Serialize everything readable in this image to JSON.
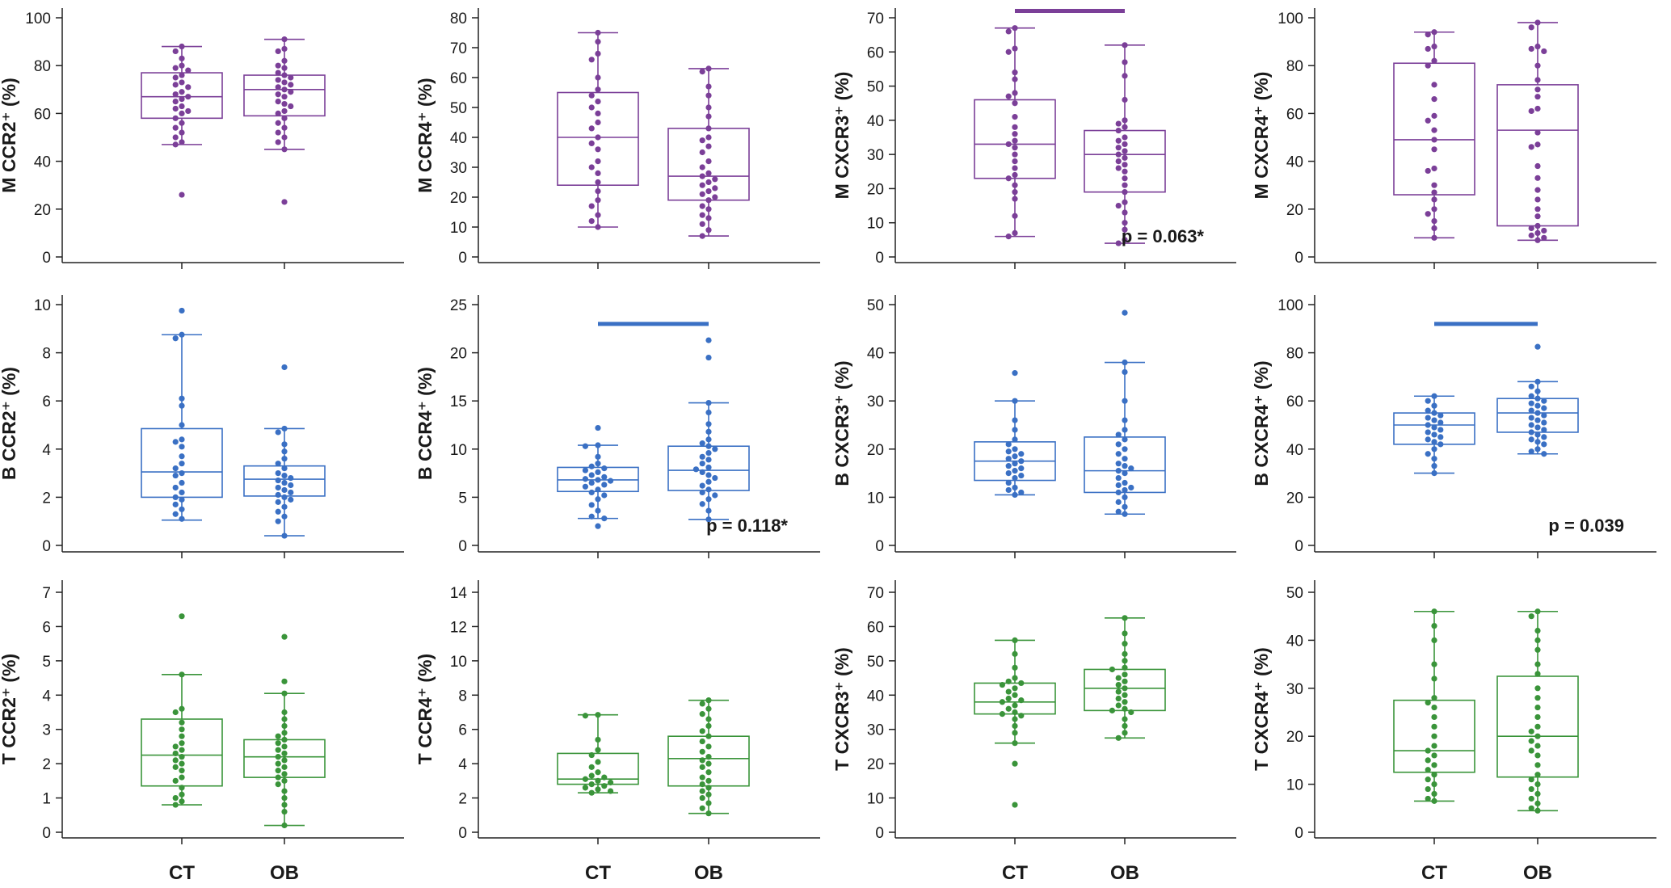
{
  "figure": {
    "group_labels": [
      "CT",
      "OB"
    ],
    "colors": {
      "M": "#7b3f98",
      "B": "#3a70c4",
      "T": "#3a943a"
    }
  },
  "chart_data": [
    {
      "id": "m-ccr2",
      "type": "box",
      "row": "M",
      "ylabel": "M CCR2⁺ (%)",
      "ylim": [
        0,
        100
      ],
      "yticks": [
        0,
        20,
        40,
        60,
        80,
        100
      ],
      "categories": [
        "CT",
        "OB"
      ],
      "boxes": [
        {
          "q1": 58,
          "median": 67,
          "q3": 77,
          "whisker_low": 47,
          "whisker_high": 88
        },
        {
          "q1": 59,
          "median": 70,
          "q3": 76,
          "whisker_low": 45,
          "whisker_high": 91
        }
      ],
      "points": [
        [
          88,
          86,
          83,
          80,
          79,
          78,
          76,
          75,
          73,
          72,
          71,
          69,
          68,
          67,
          66,
          65,
          63,
          62,
          61,
          60,
          58,
          56,
          54,
          52,
          50,
          48,
          47,
          26
        ],
        [
          91,
          87,
          86,
          82,
          80,
          79,
          77,
          76,
          75,
          74,
          73,
          72,
          71,
          70,
          69,
          68,
          67,
          65,
          64,
          63,
          61,
          60,
          58,
          56,
          54,
          52,
          50,
          48,
          45,
          23
        ]
      ],
      "significance": null,
      "p_value": null
    },
    {
      "id": "m-ccr4",
      "type": "box",
      "row": "M",
      "ylabel": "M CCR4⁺ (%)",
      "ylim": [
        0,
        80
      ],
      "yticks": [
        0,
        10,
        20,
        30,
        40,
        50,
        60,
        70,
        80
      ],
      "categories": [
        "CT",
        "OB"
      ],
      "boxes": [
        {
          "q1": 24,
          "median": 40,
          "q3": 55,
          "whisker_low": 10,
          "whisker_high": 75
        },
        {
          "q1": 19,
          "median": 27,
          "q3": 43,
          "whisker_low": 7,
          "whisker_high": 63
        }
      ],
      "points": [
        [
          75,
          72,
          68,
          66,
          60,
          56,
          54,
          52,
          50,
          48,
          45,
          43,
          40,
          38,
          36,
          32,
          30,
          28,
          25,
          22,
          19,
          17,
          14,
          12,
          10
        ],
        [
          63,
          62,
          57,
          54,
          50,
          47,
          43,
          40,
          39,
          37,
          35,
          32,
          30,
          28,
          27,
          26,
          25,
          24,
          23,
          22,
          21,
          20,
          19,
          17,
          16,
          14,
          13,
          11,
          9,
          7
        ]
      ],
      "significance": null,
      "p_value": null
    },
    {
      "id": "m-cxcr3",
      "type": "box",
      "row": "M",
      "ylabel": "M CXCR3⁺ (%)",
      "ylim": [
        0,
        70
      ],
      "yticks": [
        0,
        10,
        20,
        30,
        40,
        50,
        60,
        70
      ],
      "categories": [
        "CT",
        "OB"
      ],
      "boxes": [
        {
          "q1": 23,
          "median": 33,
          "q3": 46,
          "whisker_low": 6,
          "whisker_high": 67
        },
        {
          "q1": 19,
          "median": 30,
          "q3": 37,
          "whisker_low": 4,
          "whisker_high": 62
        }
      ],
      "points": [
        [
          67,
          66,
          61,
          60,
          54,
          52,
          48,
          47,
          45,
          41,
          38,
          36,
          34,
          33,
          32,
          30,
          28,
          26,
          24,
          23,
          21,
          19,
          17,
          12,
          7,
          6
        ],
        [
          62,
          57,
          53,
          46,
          40,
          39,
          38,
          37,
          35,
          34,
          33,
          32,
          31,
          30,
          29,
          28,
          27,
          26,
          25,
          23,
          21,
          19,
          16,
          15,
          13,
          10,
          8,
          5,
          4
        ]
      ],
      "significance": {
        "from": "CT",
        "to": "OB",
        "y": 72
      },
      "p_value": "p = 0.063*"
    },
    {
      "id": "m-cxcr4",
      "type": "box",
      "row": "M",
      "ylabel": "M CXCR4⁺ (%)",
      "ylim": [
        0,
        100
      ],
      "yticks": [
        0,
        20,
        40,
        60,
        80,
        100
      ],
      "categories": [
        "CT",
        "OB"
      ],
      "boxes": [
        {
          "q1": 26,
          "median": 49,
          "q3": 81,
          "whisker_low": 8,
          "whisker_high": 94
        },
        {
          "q1": 13,
          "median": 53,
          "q3": 72,
          "whisker_low": 7,
          "whisker_high": 98
        }
      ],
      "points": [
        [
          94,
          93,
          88,
          87,
          82,
          80,
          72,
          66,
          59,
          57,
          53,
          49,
          45,
          37,
          36,
          30,
          27,
          24,
          20,
          18,
          15,
          12,
          8
        ],
        [
          98,
          96,
          88,
          87,
          86,
          80,
          74,
          70,
          67,
          62,
          61,
          52,
          47,
          46,
          38,
          33,
          28,
          24,
          20,
          17,
          13,
          12,
          11,
          10,
          9,
          8,
          7
        ]
      ],
      "significance": null,
      "p_value": null
    },
    {
      "id": "b-ccr2",
      "type": "box",
      "row": "B",
      "ylabel": "B CCR2⁺ (%)",
      "ylim": [
        0,
        10
      ],
      "yticks": [
        0,
        2,
        4,
        6,
        8,
        10
      ],
      "categories": [
        "CT",
        "OB"
      ],
      "boxes": [
        {
          "q1": 2.0,
          "median": 3.05,
          "q3": 4.85,
          "whisker_low": 1.05,
          "whisker_high": 8.75
        },
        {
          "q1": 2.05,
          "median": 2.75,
          "q3": 3.3,
          "whisker_low": 0.4,
          "whisker_high": 4.85
        }
      ],
      "points": [
        [
          9.75,
          8.75,
          8.6,
          6.1,
          5.8,
          5.0,
          4.4,
          4.3,
          4.1,
          3.7,
          3.4,
          3.2,
          3.0,
          2.9,
          2.6,
          2.4,
          2.2,
          2.0,
          1.9,
          1.7,
          1.5,
          1.3,
          1.1
        ],
        [
          7.4,
          4.85,
          4.7,
          4.2,
          3.9,
          3.6,
          3.4,
          3.2,
          3.0,
          2.9,
          2.8,
          2.7,
          2.6,
          2.5,
          2.4,
          2.3,
          2.2,
          2.1,
          2.0,
          1.9,
          1.8,
          1.6,
          1.4,
          1.2,
          1.0,
          0.4
        ]
      ],
      "significance": null,
      "p_value": null
    },
    {
      "id": "b-ccr4",
      "type": "box",
      "row": "B",
      "ylabel": "B CCR4⁺ (%)",
      "ylim": [
        0,
        25
      ],
      "yticks": [
        0,
        5,
        10,
        15,
        20,
        25
      ],
      "categories": [
        "CT",
        "OB"
      ],
      "boxes": [
        {
          "q1": 5.6,
          "median": 6.8,
          "q3": 8.1,
          "whisker_low": 2.8,
          "whisker_high": 10.4
        },
        {
          "q1": 5.7,
          "median": 7.8,
          "q3": 10.3,
          "whisker_low": 2.7,
          "whisker_high": 14.8
        }
      ],
      "points": [
        [
          12.2,
          10.4,
          10.3,
          9.2,
          8.5,
          8.2,
          8.0,
          7.8,
          7.6,
          7.3,
          7.1,
          6.9,
          6.8,
          6.7,
          6.5,
          6.3,
          6.1,
          5.8,
          5.5,
          5.2,
          4.8,
          4.2,
          3.6,
          3.0,
          2.8,
          2.0
        ],
        [
          21.3,
          19.5,
          14.8,
          13.8,
          12.6,
          11.8,
          11.0,
          10.6,
          10.3,
          10.0,
          9.6,
          9.2,
          8.9,
          8.5,
          8.1,
          7.9,
          7.6,
          7.3,
          7.0,
          6.6,
          6.2,
          5.8,
          5.5,
          5.2,
          4.8,
          4.3,
          3.6,
          2.7
        ]
      ],
      "significance": {
        "from": "CT",
        "to": "OB",
        "y": 23
      },
      "p_value": "p = 0.118*"
    },
    {
      "id": "b-cxcr3",
      "type": "box",
      "row": "B",
      "ylabel": "B CXCR3⁺ (%)",
      "ylim": [
        0,
        50
      ],
      "yticks": [
        0,
        10,
        20,
        30,
        40,
        50
      ],
      "categories": [
        "CT",
        "OB"
      ],
      "boxes": [
        {
          "q1": 13.5,
          "median": 17.5,
          "q3": 21.5,
          "whisker_low": 10.5,
          "whisker_high": 30
        },
        {
          "q1": 11,
          "median": 15.5,
          "q3": 22.5,
          "whisker_low": 6.5,
          "whisker_high": 38
        }
      ],
      "points": [
        [
          35.8,
          30,
          26,
          24,
          22,
          21,
          20,
          19.5,
          19,
          18.5,
          18,
          17.5,
          17,
          16.5,
          16,
          15.5,
          15,
          14.5,
          14,
          13,
          12,
          11.5,
          11,
          10.5
        ],
        [
          48.3,
          38,
          36,
          30,
          26,
          24,
          23,
          22,
          21,
          20,
          19,
          18,
          17,
          16.5,
          16,
          15.5,
          15,
          14,
          13,
          12.5,
          12,
          11.5,
          11,
          10,
          9,
          8,
          7,
          6.5
        ]
      ],
      "significance": null,
      "p_value": null
    },
    {
      "id": "b-cxcr4",
      "type": "box",
      "row": "B",
      "ylabel": "B CXCR4⁺ (%)",
      "ylim": [
        0,
        100
      ],
      "yticks": [
        0,
        20,
        40,
        60,
        80,
        100
      ],
      "categories": [
        "CT",
        "OB"
      ],
      "boxes": [
        {
          "q1": 42,
          "median": 50,
          "q3": 55,
          "whisker_low": 30,
          "whisker_high": 62
        },
        {
          "q1": 47,
          "median": 55,
          "q3": 61,
          "whisker_low": 38,
          "whisker_high": 68
        }
      ],
      "points": [
        [
          62,
          60,
          58,
          56,
          55,
          54,
          53,
          52,
          51,
          50,
          49,
          48,
          47,
          46,
          45,
          44,
          43,
          42,
          40,
          38,
          36,
          33,
          30
        ],
        [
          82.5,
          68,
          66,
          64,
          62,
          61,
          60,
          59,
          58,
          57,
          56,
          55,
          54,
          53,
          52,
          51,
          50,
          49,
          48,
          47,
          46,
          45,
          44,
          43,
          42,
          40,
          39,
          38
        ]
      ],
      "significance": {
        "from": "CT",
        "to": "OB",
        "y": 92
      },
      "p_value": "p = 0.039"
    },
    {
      "id": "t-ccr2",
      "type": "box",
      "row": "T",
      "ylabel": "T CCR2⁺ (%)",
      "ylim": [
        0,
        7
      ],
      "yticks": [
        0,
        1,
        2,
        3,
        4,
        5,
        6,
        7
      ],
      "categories": [
        "CT",
        "OB"
      ],
      "boxes": [
        {
          "q1": 1.35,
          "median": 2.25,
          "q3": 3.3,
          "whisker_low": 0.8,
          "whisker_high": 4.6
        },
        {
          "q1": 1.6,
          "median": 2.2,
          "q3": 2.7,
          "whisker_low": 0.2,
          "whisker_high": 4.05
        }
      ],
      "points": [
        [
          6.3,
          4.6,
          3.6,
          3.5,
          3.2,
          3.0,
          2.8,
          2.6,
          2.5,
          2.4,
          2.3,
          2.2,
          2.1,
          2.0,
          1.9,
          1.8,
          1.6,
          1.5,
          1.3,
          1.1,
          1.0,
          0.9,
          0.8
        ],
        [
          5.7,
          4.4,
          4.05,
          3.5,
          3.3,
          3.1,
          2.9,
          2.8,
          2.7,
          2.6,
          2.5,
          2.4,
          2.3,
          2.2,
          2.1,
          2.0,
          1.9,
          1.8,
          1.7,
          1.6,
          1.5,
          1.4,
          1.2,
          1.0,
          0.8,
          0.6,
          0.2
        ]
      ],
      "significance": null,
      "p_value": null
    },
    {
      "id": "t-ccr4",
      "type": "box",
      "row": "T",
      "ylabel": "T CCR4⁺ (%)",
      "ylim": [
        0,
        14
      ],
      "yticks": [
        0,
        2,
        4,
        6,
        8,
        10,
        12,
        14
      ],
      "categories": [
        "CT",
        "OB"
      ],
      "boxes": [
        {
          "q1": 2.8,
          "median": 3.1,
          "q3": 4.6,
          "whisker_low": 2.3,
          "whisker_high": 6.85
        },
        {
          "q1": 2.7,
          "median": 4.3,
          "q3": 5.6,
          "whisker_low": 1.1,
          "whisker_high": 7.7
        }
      ],
      "points": [
        [
          6.85,
          6.8,
          5.4,
          4.8,
          4.5,
          4.1,
          3.8,
          3.5,
          3.3,
          3.2,
          3.1,
          3.0,
          2.9,
          2.8,
          2.7,
          2.6,
          2.5,
          2.4,
          2.3
        ],
        [
          7.7,
          7.5,
          7.2,
          6.9,
          6.6,
          6.2,
          5.9,
          5.6,
          5.3,
          5.0,
          4.7,
          4.4,
          4.2,
          4.0,
          3.8,
          3.5,
          3.2,
          3.0,
          2.8,
          2.6,
          2.4,
          2.2,
          2.0,
          1.7,
          1.4,
          1.1
        ]
      ],
      "significance": null,
      "p_value": null
    },
    {
      "id": "t-cxcr3",
      "type": "box",
      "row": "T",
      "ylabel": "T CXCR3⁺ (%)",
      "ylim": [
        0,
        70
      ],
      "yticks": [
        0,
        10,
        20,
        30,
        40,
        50,
        60,
        70
      ],
      "categories": [
        "CT",
        "OB"
      ],
      "boxes": [
        {
          "q1": 34.5,
          "median": 38,
          "q3": 43.5,
          "whisker_low": 26,
          "whisker_high": 56
        },
        {
          "q1": 35.5,
          "median": 42,
          "q3": 47.5,
          "whisker_low": 27.5,
          "whisker_high": 62.5
        }
      ],
      "points": [
        [
          56,
          52,
          48,
          45,
          44,
          43.5,
          43,
          42,
          41,
          40,
          39,
          38.5,
          38,
          37,
          36,
          35,
          34.5,
          34,
          33,
          31,
          29,
          26,
          20,
          8
        ],
        [
          62.5,
          58,
          55,
          52,
          50,
          48,
          47.5,
          46,
          45,
          44,
          43,
          42,
          41,
          40,
          39,
          38,
          37,
          36,
          35.5,
          35,
          33,
          31,
          29,
          27.5
        ]
      ],
      "significance": null,
      "p_value": null
    },
    {
      "id": "t-cxcr4",
      "type": "box",
      "row": "T",
      "ylabel": "T CXCR4⁺ (%)",
      "ylim": [
        0,
        50
      ],
      "yticks": [
        0,
        10,
        20,
        30,
        40,
        50
      ],
      "categories": [
        "CT",
        "OB"
      ],
      "boxes": [
        {
          "q1": 12.5,
          "median": 17,
          "q3": 27.5,
          "whisker_low": 6.5,
          "whisker_high": 46
        },
        {
          "q1": 11.5,
          "median": 20,
          "q3": 32.5,
          "whisker_low": 4.5,
          "whisker_high": 46
        }
      ],
      "points": [
        [
          46,
          43,
          40,
          35,
          32,
          28,
          27,
          26,
          24,
          22,
          20,
          18,
          17,
          16,
          15,
          14,
          13,
          12,
          11,
          10,
          9,
          8,
          7,
          6.5
        ],
        [
          46,
          45,
          42,
          40,
          38,
          35,
          33,
          30,
          28,
          26,
          24,
          22,
          21,
          20,
          19,
          18,
          17,
          16,
          14,
          12,
          11,
          10,
          9,
          8,
          7,
          6,
          5,
          4.5
        ]
      ],
      "significance": null,
      "p_value": null
    }
  ]
}
